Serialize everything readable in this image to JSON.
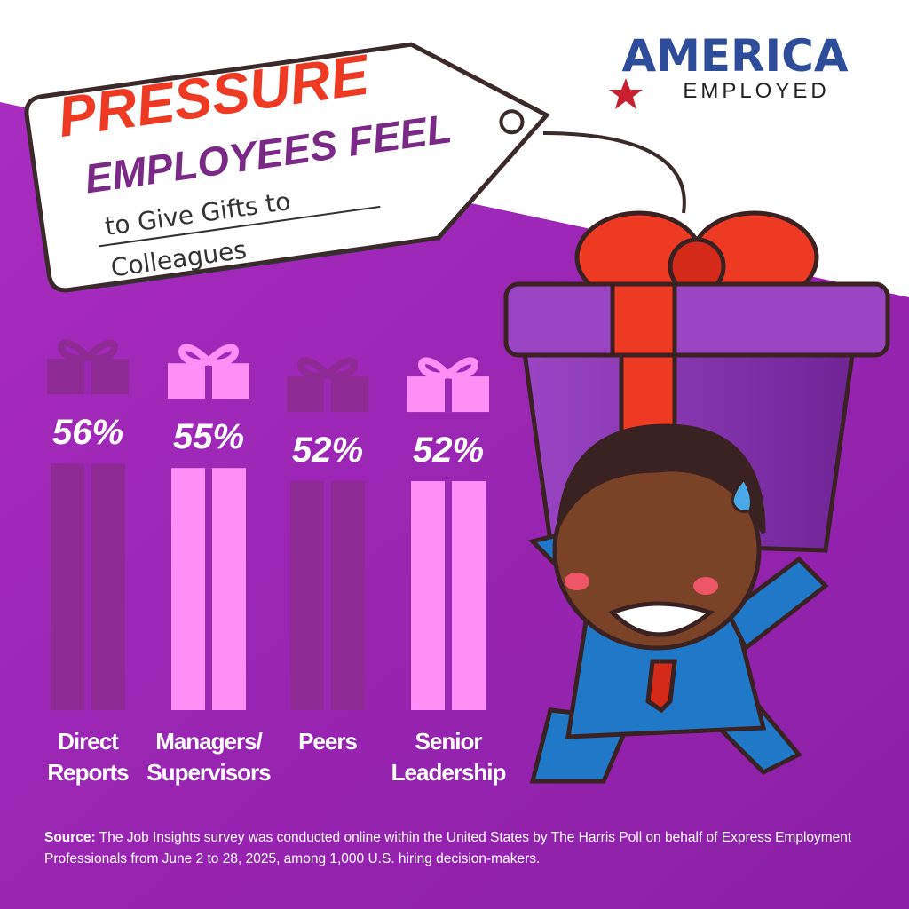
{
  "chart_data": {
    "type": "bar",
    "title": "PRESSURE",
    "subtitle": "EMPLOYEES FEEL",
    "tag_lines": [
      "to Give Gifts to",
      "Colleagues"
    ],
    "brand": {
      "name": "AMERICA",
      "tagline": "EMPLOYED"
    },
    "categories": [
      "Direct\nReports",
      "Managers/\nSupervisors",
      "Peers",
      "Senior\nLeadership"
    ],
    "values": [
      56,
      55,
      52,
      52
    ],
    "value_labels": [
      "56%",
      "55%",
      "52%",
      "52%"
    ],
    "colors": [
      "#8e2a93",
      "#ff8ef7",
      "#8e2a93",
      "#ff8ef7"
    ],
    "source_label": "Source:",
    "source": "The Job Insights survey was conducted online within the United States by The Harris Poll on behalf of Express Employment Professionals from June 2 to 28, 2025, among 1,000 U.S. hiring decision-makers."
  }
}
